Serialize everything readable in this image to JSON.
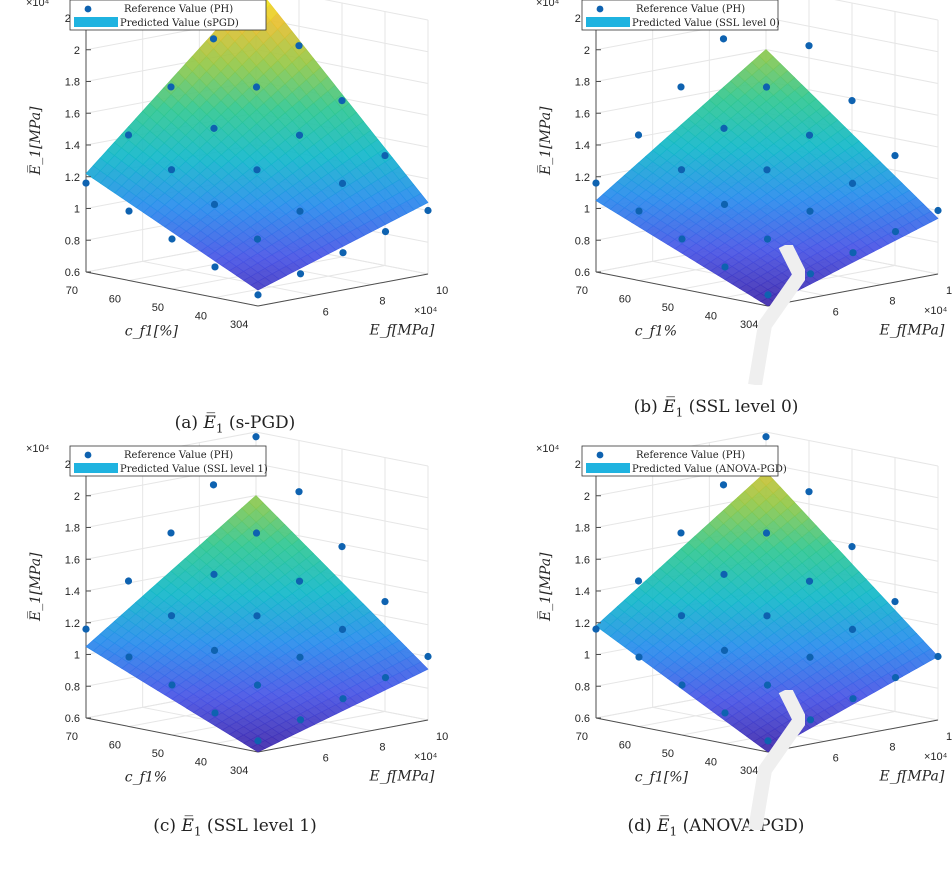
{
  "chart_data": [
    {
      "type": "surface3d",
      "panel_id": "a",
      "caption_prefix": "(a)",
      "caption_var": "E̅",
      "caption_sub": "1",
      "caption_suffix": "(s-PGD)",
      "legend": [
        "Reference Value (PH)",
        "Predicted Value (sPGD)"
      ],
      "xlabel": "E_f[MPa]",
      "ylabel": "c_f1[%]",
      "zlabel": "E̅_1[MPa]",
      "x_ticks": [
        "4",
        "6",
        "8",
        "10"
      ],
      "y_ticks": [
        "30",
        "40",
        "50",
        "60",
        "70"
      ],
      "z_ticks": [
        "0.6",
        "0.8",
        "1",
        "1.2",
        "1.4",
        "1.6",
        "1.8",
        "2",
        "2.2"
      ],
      "x_exponent": "×10⁴",
      "z_exponent": "×10⁴",
      "xlim": [
        4,
        10
      ],
      "ylim": [
        30,
        70
      ],
      "zlim": [
        0.6,
        2.2
      ],
      "surface_corners": {
        "x4_y30": 0.7,
        "x10_y30": 1.05,
        "x4_y70": 1.22,
        "x10_y70": 2.2
      },
      "points_grid": {
        "x": [
          4,
          5.5,
          7,
          8.5,
          10
        ],
        "y": [
          30,
          40,
          50,
          60,
          70
        ]
      }
    },
    {
      "type": "surface3d",
      "panel_id": "b",
      "caption_prefix": "(b)",
      "caption_var": "E̅",
      "caption_sub": "1",
      "caption_suffix": "(SSL level 0)",
      "legend": [
        "Reference Value (PH)",
        "Predicted Value (SSL level 0)"
      ],
      "xlabel": "E_f[MPa]",
      "ylabel": "c_f1%",
      "zlabel": "E̅_1[MPa]",
      "x_ticks": [
        "4",
        "6",
        "8",
        "10"
      ],
      "y_ticks": [
        "30",
        "40",
        "50",
        "60",
        "70"
      ],
      "z_ticks": [
        "0.6",
        "0.8",
        "1",
        "1.2",
        "1.4",
        "1.6",
        "1.8",
        "2",
        "2.2"
      ],
      "x_exponent": "×10⁴",
      "z_exponent": "×10⁴",
      "xlim": [
        4,
        10
      ],
      "ylim": [
        30,
        70
      ],
      "zlim": [
        0.6,
        2.2
      ],
      "surface_corners": {
        "x4_y30": 0.6,
        "x10_y30": 0.95,
        "x4_y70": 1.05,
        "x10_y70": 1.8
      },
      "points_grid": {
        "x": [
          4,
          5.5,
          7,
          8.5,
          10
        ],
        "y": [
          30,
          40,
          50,
          60,
          70
        ]
      }
    },
    {
      "type": "surface3d",
      "panel_id": "c",
      "caption_prefix": "(c)",
      "caption_var": "E̅",
      "caption_sub": "1",
      "caption_suffix": "(SSL level 1)",
      "legend": [
        "Reference Value (PH)",
        "Predicted Value (SSL level 1)"
      ],
      "xlabel": "E_f[MPa]",
      "ylabel": "c_f1%",
      "zlabel": "E̅_1[MPa]",
      "x_ticks": [
        "4",
        "6",
        "8",
        "10"
      ],
      "y_ticks": [
        "30",
        "40",
        "50",
        "60",
        "70"
      ],
      "z_ticks": [
        "0.6",
        "0.8",
        "1",
        "1.2",
        "1.4",
        "1.6",
        "1.8",
        "2",
        "2.2"
      ],
      "x_exponent": "×10⁴",
      "z_exponent": "×10⁴",
      "xlim": [
        4,
        10
      ],
      "ylim": [
        30,
        70
      ],
      "zlim": [
        0.6,
        2.2
      ],
      "surface_corners": {
        "x4_y30": 0.6,
        "x10_y30": 0.92,
        "x4_y70": 1.05,
        "x10_y70": 1.8
      },
      "points_grid": {
        "x": [
          4,
          5.5,
          7,
          8.5,
          10
        ],
        "y": [
          30,
          40,
          50,
          60,
          70
        ]
      }
    },
    {
      "type": "surface3d",
      "panel_id": "d",
      "caption_prefix": "(d)",
      "caption_var": "E̅",
      "caption_sub": "1",
      "caption_suffix": "(ANOVA-PGD)",
      "legend": [
        "Reference Value (PH)",
        "Predicted Value (ANOVA-PGD)"
      ],
      "xlabel": "E_f[MPa]",
      "ylabel": "c_f1[%]",
      "zlabel": "E̅_1[MPa]",
      "x_ticks": [
        "4",
        "6",
        "8",
        "10"
      ],
      "y_ticks": [
        "30",
        "40",
        "50",
        "60",
        "70"
      ],
      "z_ticks": [
        "0.6",
        "0.8",
        "1",
        "1.2",
        "1.4",
        "1.6",
        "1.8",
        "2",
        "2.2"
      ],
      "x_exponent": "×10⁴",
      "z_exponent": "×10⁴",
      "xlim": [
        4,
        10
      ],
      "ylim": [
        30,
        70
      ],
      "zlim": [
        0.6,
        2.2
      ],
      "surface_corners": {
        "x4_y30": 0.6,
        "x10_y30": 1.0,
        "x4_y70": 1.18,
        "x10_y70": 1.95
      },
      "points_grid": {
        "x": [
          4,
          5.5,
          7,
          8.5,
          10
        ],
        "y": [
          30,
          40,
          50,
          60,
          70
        ]
      }
    }
  ],
  "reference_points_corners": {
    "x4_y30": 0.67,
    "x10_y30": 1.0,
    "x4_y70": 1.16,
    "x10_y70": 2.17
  },
  "colors": {
    "points": "#0e62b0",
    "legend_patch": "#1fb3e0",
    "grid": "#e6e6e6",
    "axis": "#4d4d4d"
  }
}
